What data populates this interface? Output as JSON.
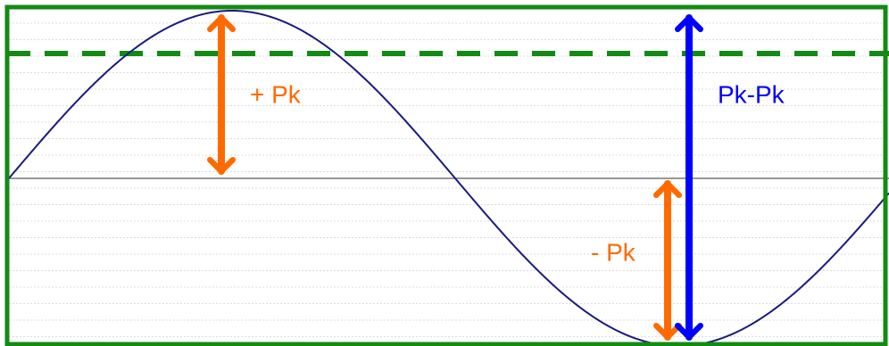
{
  "labels": {
    "positive_peak": "+ Pk",
    "peak_to_peak": "Pk-Pk",
    "negative_peak": "- Pk"
  }
}
